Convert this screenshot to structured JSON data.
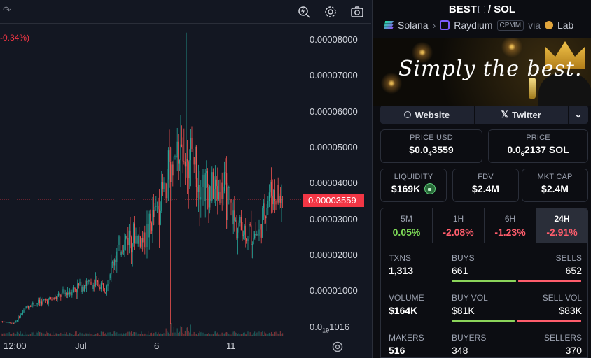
{
  "chart": {
    "change_label": "-0.34%)",
    "price_axis": [
      {
        "label": "0.00008000",
        "value": 8e-05
      },
      {
        "label": "0.00007000",
        "value": 7e-05
      },
      {
        "label": "0.00006000",
        "value": 6e-05
      },
      {
        "label": "0.00005000",
        "value": 5e-05
      },
      {
        "label": "0.00004000",
        "value": 4e-05
      },
      {
        "label": "0.00003000",
        "value": 3e-05
      },
      {
        "label": "0.00002000",
        "value": 2e-05
      },
      {
        "label": "0.00001000",
        "value": 1e-05
      }
    ],
    "bottom_label_prefix": "0.0",
    "bottom_label_sub": "19",
    "bottom_label_suffix": "1016",
    "current_price": "0.00003559",
    "current_price_value": 3.559e-05,
    "time_axis": [
      "12:00",
      "Jul",
      "6",
      "11"
    ],
    "colors": {
      "up": "#26a69a",
      "down": "#ef5350",
      "current": "#f23645"
    }
  },
  "pair": {
    "base": "BEST",
    "separator": "/",
    "quote": "SOL",
    "chain": "Solana",
    "dex": "Raydium",
    "pool_type": "CPMM",
    "via": "via",
    "launchpad": "Lab"
  },
  "banner": {
    "text": "Simply the best."
  },
  "links": {
    "website": "Website",
    "twitter": "Twitter"
  },
  "prices": {
    "usd_label": "PRICE USD",
    "usd_prefix": "$0.0",
    "usd_sub": "4",
    "usd_suffix": "3559",
    "native_label": "PRICE",
    "native_prefix": "0.0",
    "native_sub": "6",
    "native_suffix": "2137 SOL"
  },
  "metrics": {
    "liquidity_label": "LIQUIDITY",
    "liquidity": "$169K",
    "fdv_label": "FDV",
    "fdv": "$2.4M",
    "mcap_label": "MKT CAP",
    "mcap": "$2.4M"
  },
  "timeframes": [
    {
      "name": "5M",
      "change": "0.05%",
      "dir": "pos"
    },
    {
      "name": "1H",
      "change": "-2.08%",
      "dir": "neg"
    },
    {
      "name": "6H",
      "change": "-1.23%",
      "dir": "neg"
    },
    {
      "name": "24H",
      "change": "-2.91%",
      "dir": "neg",
      "active": true
    }
  ],
  "stats": {
    "txns_label": "TXNS",
    "txns": "1,313",
    "buys_label": "BUYS",
    "buys": "661",
    "sells_label": "SELLS",
    "sells": "652",
    "buys_ratio": 0.503,
    "volume_label": "VOLUME",
    "volume": "$164K",
    "buy_vol_label": "BUY VOL",
    "buy_vol": "$81K",
    "sell_vol_label": "SELL VOL",
    "sell_vol": "$83K",
    "buy_vol_ratio": 0.494,
    "makers_label": "MAKERS",
    "makers": "516",
    "buyers_label": "BUYERS",
    "buyers": "348",
    "sellers_label": "SELLERS",
    "sellers": "370"
  }
}
